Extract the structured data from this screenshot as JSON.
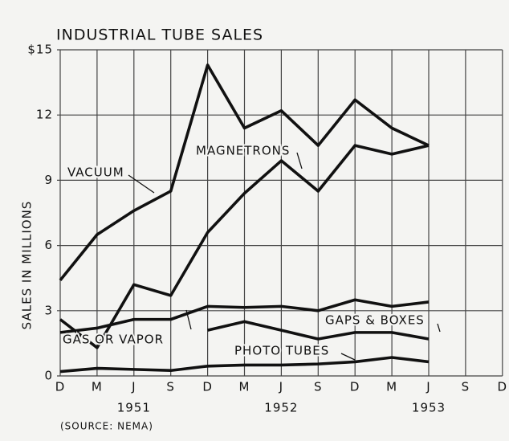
{
  "chart_data": {
    "type": "line",
    "title": "INDUSTRIAL TUBE SALES",
    "y_label": "SALES IN MILLIONS",
    "source": "(SOURCE: NEMA)",
    "categories": [
      "D",
      "M",
      "J",
      "S",
      "D",
      "M",
      "J",
      "S",
      "D",
      "M",
      "J",
      "S",
      "D"
    ],
    "years": [
      {
        "index": 2,
        "label": "1951"
      },
      {
        "index": 6,
        "label": "1952"
      },
      {
        "index": 10,
        "label": "1953"
      }
    ],
    "ylim": [
      0,
      15
    ],
    "yticks": [
      0,
      3,
      6,
      9,
      12,
      {
        "value": 15,
        "label": "$15"
      }
    ],
    "grid": true,
    "series": [
      {
        "name": "VACUUM",
        "color": "#111111",
        "values": [
          4.4,
          6.5,
          7.6,
          8.5,
          14.3,
          11.4,
          12.2,
          10.6,
          12.7,
          11.4,
          10.6,
          null,
          null
        ]
      },
      {
        "name": "MAGNETRONS",
        "color": "#111111",
        "values": [
          2.6,
          1.3,
          4.2,
          3.7,
          6.6,
          8.4,
          9.9,
          8.5,
          10.6,
          10.2,
          10.6,
          null,
          null
        ]
      },
      {
        "name": "GAS OR VAPOR",
        "color": "#111111",
        "values": [
          2.0,
          2.2,
          2.6,
          2.6,
          3.2,
          3.15,
          3.2,
          3.0,
          3.5,
          3.2,
          3.4,
          null,
          null
        ]
      },
      {
        "name": "GAPS & BOXES",
        "color": "#111111",
        "values": [
          null,
          null,
          null,
          null,
          2.1,
          2.5,
          2.1,
          1.7,
          2.0,
          2.0,
          1.7,
          null,
          null
        ]
      },
      {
        "name": "PHOTO TUBES",
        "color": "#111111",
        "values": [
          0.2,
          0.35,
          0.3,
          0.25,
          0.45,
          0.5,
          0.5,
          0.55,
          0.65,
          0.85,
          0.65,
          null,
          null
        ]
      }
    ]
  }
}
